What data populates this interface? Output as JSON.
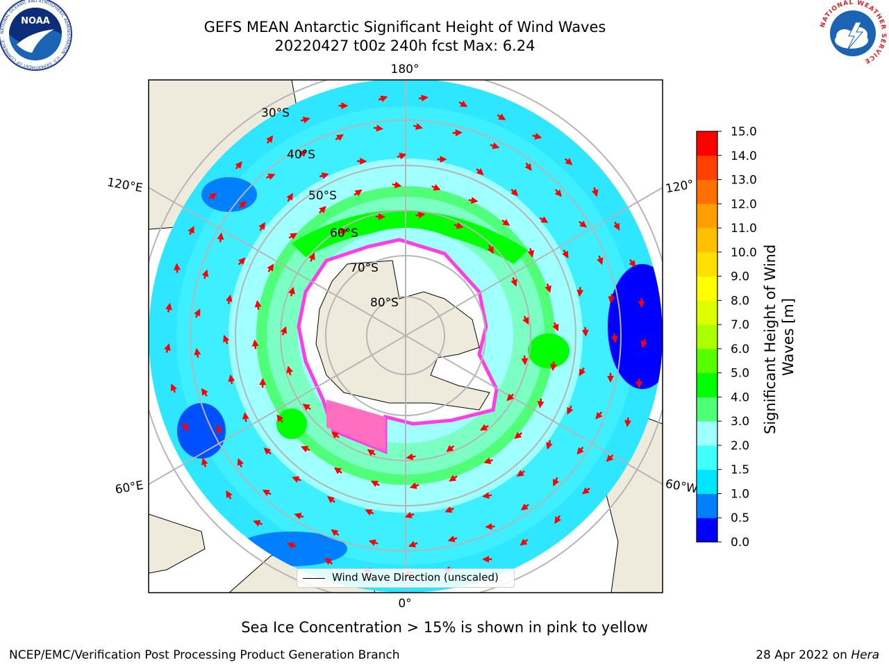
{
  "title": {
    "line1": "GEFS MEAN Antarctic Significant Height of Wind Waves",
    "line2": "20220427 t00z 240h fcst   Max: 6.24"
  },
  "map": {
    "projection": "south-polar-stereographic",
    "longitude_labels": {
      "top": "180°",
      "upper_left": "120°E",
      "upper_right": "120°",
      "lower_left": "60°E",
      "lower_right": "60°W",
      "bottom": "0°"
    },
    "latitude_labels": [
      "30°S",
      "40°S",
      "50°S",
      "60°S",
      "70°S",
      "80°S"
    ],
    "legend_label": "Wind Wave Direction (unscaled)",
    "arrow_color": "#ff0000"
  },
  "colorbar": {
    "label": "Significant Height of Wind Waves [m]",
    "label_line1": "Significant Height of Wind",
    "label_line2": "Waves [m]",
    "ticks": [
      "0.0",
      "0.5",
      "1.0",
      "1.5",
      "2.0",
      "3.0",
      "4.0",
      "5.0",
      "6.0",
      "7.0",
      "8.0",
      "9.0",
      "10.0",
      "11.0",
      "12.0",
      "13.0",
      "14.0",
      "15.0"
    ],
    "colors": [
      "#0000ff",
      "#0080ff",
      "#00e6ff",
      "#40ffff",
      "#a0ffff",
      "#50ff78",
      "#00ff00",
      "#55ff00",
      "#aaff00",
      "#dcff00",
      "#ffff00",
      "#ffe000",
      "#ffc000",
      "#ffa000",
      "#ff7000",
      "#ff4000",
      "#ff0000"
    ]
  },
  "caption": "Sea Ice Concentration > 15% is shown in pink to yellow",
  "footer": {
    "left": "NCEP/EMC/Verification Post Processing Product Generation Branch",
    "right_date": "28 Apr 2022 on ",
    "right_machine": "Hera"
  },
  "logos": {
    "left": "NOAA",
    "left_ring_text": "NATIONAL OCEANIC AND ATMOSPHERIC ADMINISTRATION · U.S. DEPARTMENT OF COMMERCE",
    "right_ring_text": "NATIONAL WEATHER SERVICE"
  }
}
